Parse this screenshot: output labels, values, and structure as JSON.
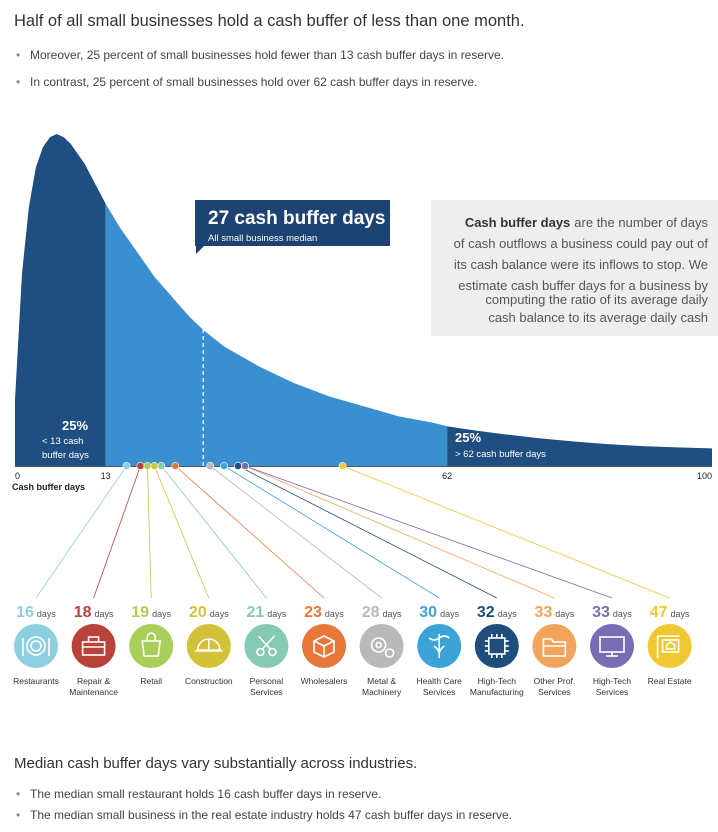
{
  "header": {
    "title": "Half of all small businesses hold a cash buffer of less than one month.",
    "bullets": [
      "Moreover, 25 percent of small businesses hold fewer than 13 cash buffer days in reserve.",
      "In contrast, 25 percent of small businesses hold over 62 cash buffer days in reserve."
    ]
  },
  "median_box": {
    "title": "27 cash buffer days",
    "subtitle": "All small business median"
  },
  "definition": {
    "bold": "Cash buffer days",
    "lines": [
      "are the number of days",
      "of cash outflows a business could pay out of",
      "its cash balance were its inflows to stop. We",
      "estimate cash buffer days for a business by",
      "computing the ratio of its average daily",
      "cash balance to its average daily cash"
    ]
  },
  "low_quartile": {
    "pct": "25%",
    "line1": "< 13 cash",
    "line2": "buffer days"
  },
  "high_quartile": {
    "pct": "25%",
    "line1": "> 62 cash buffer days"
  },
  "colors": {
    "curve_dark": "#1e4f80",
    "curve_light": "#3a8fd0",
    "median_box": "#1d4373",
    "text_gray": "#5a6d7a",
    "gray_box": "#eeeeee"
  },
  "chart_data": {
    "type": "area",
    "xlabel": "Cash buffer days",
    "xlim": [
      0,
      100
    ],
    "x_ticks": [
      "0",
      "13",
      "62",
      "100"
    ],
    "x_tick_values": [
      0,
      13,
      62,
      100
    ],
    "quartiles": {
      "q1": 13,
      "median": 27,
      "q3": 62
    },
    "curve": {
      "x": [
        0,
        1,
        2,
        3,
        4,
        5,
        6,
        7,
        8,
        9,
        10,
        11,
        12,
        13,
        15,
        18,
        20,
        25,
        27,
        30,
        35,
        40,
        45,
        50,
        55,
        60,
        62,
        65,
        70,
        75,
        80,
        85,
        90,
        95,
        100
      ],
      "y": [
        0.2,
        0.58,
        0.78,
        0.9,
        0.96,
        0.99,
        1.0,
        0.99,
        0.97,
        0.94,
        0.91,
        0.87,
        0.83,
        0.79,
        0.72,
        0.63,
        0.57,
        0.45,
        0.41,
        0.36,
        0.3,
        0.25,
        0.21,
        0.18,
        0.15,
        0.13,
        0.12,
        0.11,
        0.096,
        0.084,
        0.074,
        0.066,
        0.06,
        0.056,
        0.053
      ]
    },
    "industries": [
      {
        "name": "Restaurants",
        "name2": "",
        "days": 16,
        "color": "#8dcfe0",
        "icon": "plate-icon"
      },
      {
        "name": "Repair &",
        "name2": "Maintenance",
        "days": 18,
        "color": "#b9423b",
        "icon": "toolbox-icon"
      },
      {
        "name": "Retail",
        "name2": "",
        "days": 19,
        "color": "#a9cf5a",
        "icon": "shopping-bag-icon"
      },
      {
        "name": "Construction",
        "name2": "",
        "days": 20,
        "color": "#d4c13a",
        "icon": "hard-hat-icon"
      },
      {
        "name": "Personal",
        "name2": "Services",
        "days": 21,
        "color": "#86c9b5",
        "icon": "scissors-icon"
      },
      {
        "name": "Wholesalers",
        "name2": "",
        "days": 23,
        "color": "#e8773a",
        "icon": "boxes-icon"
      },
      {
        "name": "Metal &",
        "name2": "Machinery",
        "days": 28,
        "color": "#b7b9bb",
        "icon": "gears-icon"
      },
      {
        "name": "Health Care",
        "name2": "Services",
        "days": 30,
        "color": "#3ca3d6",
        "icon": "caduceus-icon"
      },
      {
        "name": "High-Tech",
        "name2": "Manufacturing",
        "days": 32,
        "color": "#1f4e7d",
        "icon": "chip-icon"
      },
      {
        "name": "Other Prof.",
        "name2": "Services",
        "days": 33,
        "color": "#f0a45c",
        "icon": "folder-icon"
      },
      {
        "name": "High-Tech",
        "name2": "Services",
        "days": 33,
        "color": "#7a6cb3",
        "icon": "monitor-icon"
      },
      {
        "name": "Real Estate",
        "name2": "",
        "days": 47,
        "color": "#f0c832",
        "icon": "house-sign-icon"
      }
    ]
  },
  "footer": {
    "title": "Median cash buffer days vary substantially across industries.",
    "bullets": [
      "The median small restaurant holds 16 cash buffer days in reserve.",
      "The median small business in the real estate industry holds 47 cash buffer days in reserve."
    ]
  }
}
